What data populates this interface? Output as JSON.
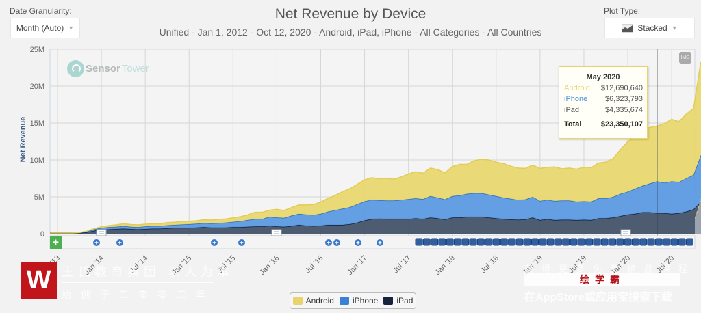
{
  "controls": {
    "date_granularity_label": "Date Granularity:",
    "date_granularity_value": "Month (Auto)",
    "plot_type_label": "Plot Type:",
    "plot_type_value": "Stacked",
    "plot_type_icon": "area-chart-icon",
    "export_button": "IMG"
  },
  "watermark_logo": "SensorTower",
  "watermark_logo_part1": "Sensor",
  "watermark_logo_part2": "Tower",
  "tooltip": {
    "title": "May 2020",
    "rows": [
      {
        "label": "Android",
        "value": "$12,690,640",
        "color": "#e8d36d"
      },
      {
        "label": "iPhone",
        "value": "$6,323,793",
        "color": "#4a90d9"
      },
      {
        "label": "iPad",
        "value": "$4,335,674",
        "color": "#555555"
      }
    ],
    "total_label": "Total",
    "total_value": "$23,350,107"
  },
  "overlay_watermark": {
    "logo_letter": "W",
    "line1": "王氏教育集团 以人为本",
    "line2": "始创于二零零二年",
    "right_line1": "获得更多免费精品课程",
    "right_box": "绘学霸",
    "right_line2": "在AppStore或应用宝搜索下载"
  },
  "chart_data": {
    "type": "area",
    "stacked": true,
    "title": "Net Revenue by Device",
    "subtitle": "Unified - Jan 1, 2012 - Oct 12, 2020 - Android, iPad, iPhone - All Categories - All Countries",
    "xlabel": "",
    "ylabel": "Net Revenue",
    "ylim": [
      0,
      25000000
    ],
    "yticks": [
      0,
      5000000,
      10000000,
      15000000,
      20000000,
      25000000
    ],
    "ytick_labels": [
      "0",
      "5M",
      "10M",
      "15M",
      "20M",
      "25M"
    ],
    "xtick_labels": [
      "Jul '13",
      "Jan '14",
      "Jul '14",
      "Jan '15",
      "Jul '15",
      "Jan '16",
      "Jul '16",
      "Jan '17",
      "Jul '17",
      "Jan '18",
      "Jul '18",
      "Jan '19",
      "Jul '19",
      "Jan '20",
      "Jul '20"
    ],
    "grid": true,
    "legend": "bottom-center",
    "x_start": "2013-06",
    "x_end": "2020-10",
    "highlight": "May 2020",
    "series": [
      {
        "name": "iPad",
        "color": "#1c2b45",
        "values": [
          0.1,
          0.1,
          0.1,
          0.1,
          0.1,
          0.2,
          0.4,
          0.55,
          0.6,
          0.65,
          0.7,
          0.65,
          0.6,
          0.65,
          0.7,
          0.7,
          0.75,
          0.8,
          0.8,
          0.8,
          0.85,
          0.9,
          0.85,
          0.85,
          0.85,
          0.9,
          0.9,
          0.95,
          1.0,
          1.0,
          1.1,
          1.0,
          0.95,
          1.05,
          1.2,
          1.1,
          1.05,
          1.1,
          1.2,
          1.2,
          1.2,
          1.3,
          1.5,
          1.8,
          2.0,
          2.05,
          2.0,
          2.0,
          2.0,
          2.0,
          2.1,
          2.0,
          2.2,
          2.1,
          1.95,
          2.2,
          2.2,
          2.3,
          2.3,
          2.3,
          2.2,
          2.1,
          2.0,
          1.95,
          1.9,
          1.95,
          2.2,
          1.85,
          2.0,
          1.85,
          1.9,
          1.9,
          1.85,
          1.9,
          1.85,
          2.1,
          2.1,
          2.2,
          2.4,
          2.6,
          2.7,
          2.9,
          2.9,
          2.8,
          2.8,
          2.7,
          2.8,
          3.0,
          3.3,
          4.34,
          3.3,
          4.3,
          3.5,
          3.5
        ]
      },
      {
        "name": "iPhone",
        "color": "#4a90d9",
        "values": [
          0.0,
          0.0,
          0.0,
          0.0,
          0.05,
          0.1,
          0.2,
          0.25,
          0.3,
          0.3,
          0.35,
          0.3,
          0.3,
          0.35,
          0.35,
          0.35,
          0.4,
          0.4,
          0.45,
          0.5,
          0.5,
          0.55,
          0.55,
          0.6,
          0.65,
          0.7,
          0.8,
          0.9,
          1.0,
          1.0,
          1.2,
          1.2,
          1.2,
          1.4,
          1.5,
          1.5,
          1.5,
          1.6,
          1.8,
          2.0,
          2.2,
          2.3,
          2.5,
          2.6,
          2.6,
          2.5,
          2.5,
          2.5,
          2.6,
          2.7,
          2.7,
          2.7,
          2.9,
          2.8,
          2.7,
          2.9,
          3.0,
          3.1,
          3.2,
          3.2,
          3.1,
          3.0,
          2.9,
          2.8,
          2.7,
          2.7,
          2.8,
          2.6,
          2.6,
          2.6,
          2.6,
          2.6,
          2.5,
          2.5,
          2.5,
          2.7,
          2.7,
          2.8,
          3.0,
          3.1,
          3.4,
          3.6,
          3.9,
          4.3,
          4.1,
          4.4,
          4.2,
          4.5,
          4.7,
          6.32,
          4.7,
          6.2,
          5.0,
          5.0
        ]
      },
      {
        "name": "Android",
        "color": "#e8d36d",
        "values": [
          0.0,
          0.0,
          0.0,
          0.0,
          0.0,
          0.05,
          0.1,
          0.15,
          0.2,
          0.25,
          0.3,
          0.3,
          0.3,
          0.3,
          0.3,
          0.3,
          0.35,
          0.35,
          0.4,
          0.4,
          0.4,
          0.45,
          0.45,
          0.5,
          0.5,
          0.55,
          0.6,
          0.7,
          0.9,
          0.9,
          0.9,
          1.1,
          1.0,
          1.1,
          1.2,
          1.3,
          1.4,
          1.6,
          1.8,
          2.0,
          2.3,
          2.5,
          2.7,
          2.9,
          3.0,
          2.9,
          3.0,
          2.9,
          3.1,
          3.4,
          3.6,
          3.5,
          3.8,
          3.8,
          3.6,
          4.0,
          4.2,
          4.0,
          4.4,
          4.6,
          4.7,
          4.6,
          4.6,
          4.4,
          4.3,
          4.2,
          4.3,
          4.4,
          4.4,
          4.6,
          4.3,
          4.4,
          4.4,
          4.6,
          4.6,
          4.8,
          4.9,
          5.2,
          6.0,
          6.8,
          7.0,
          7.5,
          7.6,
          7.5,
          8.0,
          8.4,
          8.2,
          8.7,
          9.0,
          12.69,
          9.5,
          11.5,
          9.0,
          8.8
        ]
      }
    ]
  },
  "event_markers": {
    "add_label": "+"
  }
}
